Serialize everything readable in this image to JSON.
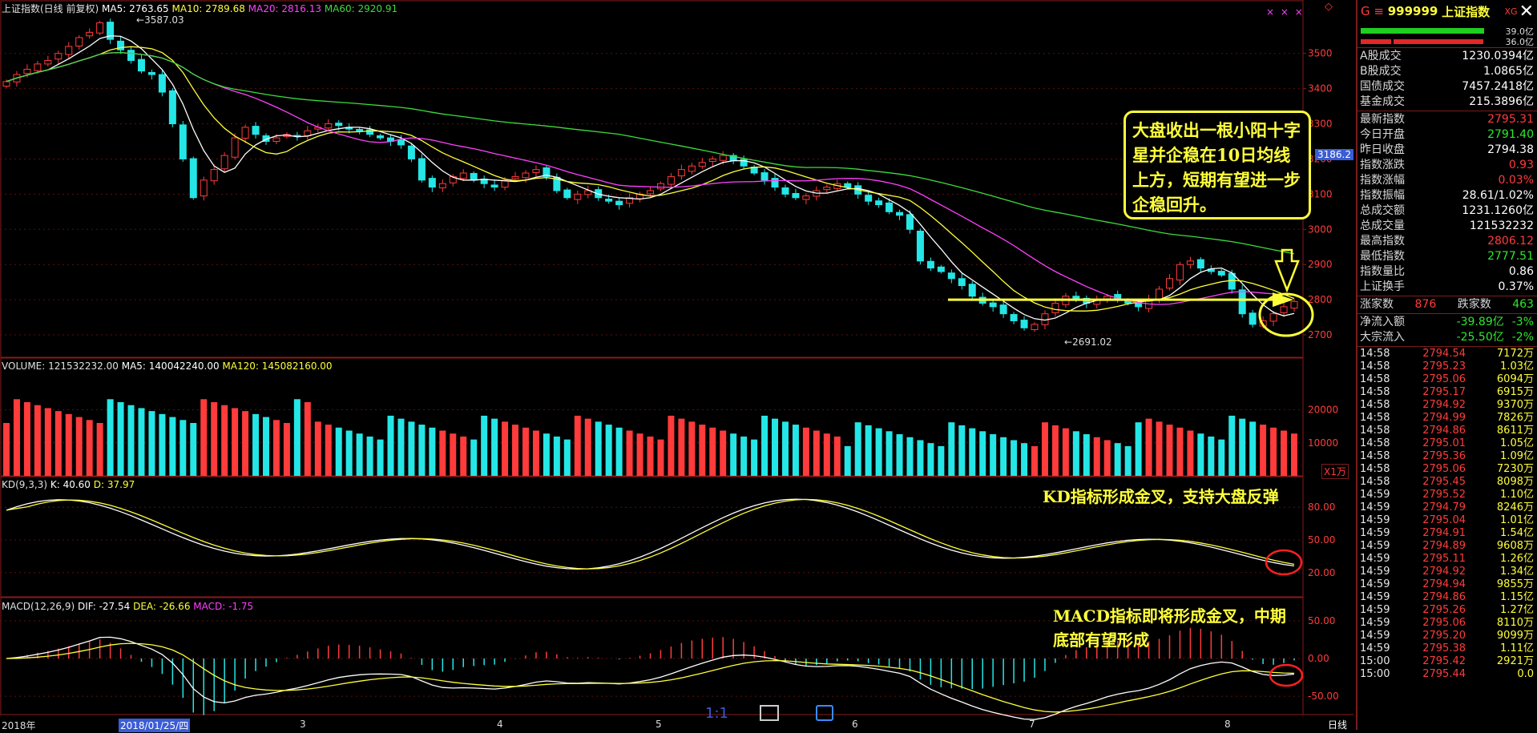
{
  "main_header": {
    "title": "上证指数(日线 前复权)",
    "ma5": "MA5: 2763.65",
    "ma10": "MA10: 2789.68",
    "ma20": "MA20: 2816.13",
    "ma60": "MA60: 2920.91",
    "peak_label": "3587.03",
    "low_label": "2691.02",
    "last_price_tag": "3186.2",
    "dots": "× × ×"
  },
  "price_axis": {
    "ticks": [
      "3500",
      "3400",
      "3300",
      "3200",
      "3100",
      "3000",
      "2900",
      "2800",
      "2700"
    ],
    "range": [
      2650,
      3620
    ]
  },
  "volume_header": {
    "label": "VOLUME: 121532232.00",
    "ma5": "MA5: 140042240.00",
    "ma120": "MA120: 145082160.00",
    "unit": "X1万",
    "ticks": [
      "20000",
      "10000"
    ]
  },
  "kd_header": {
    "label": "KD(9,3,3)",
    "k": "K: 40.60",
    "d": "D: 37.97",
    "ticks": [
      "80.00",
      "50.00",
      "20.00"
    ]
  },
  "macd_header": {
    "label": "MACD(12,26,9)",
    "dif": "DIF: -27.54",
    "dea": "DEA: -26.66",
    "macd": "MACD: -1.75",
    "ticks": [
      "50.00",
      "0.00",
      "-50.00"
    ]
  },
  "annotations": {
    "note_box": "大盘收出一根小阳十字星并企稳在10日均线上方，短期有望进一步企稳回升。",
    "kd_note": "KD指标形成金叉，支持大盘反弹",
    "macd_note_line1": "MACD指标即将形成金叉，中期",
    "macd_note_line2": "底部有望形成"
  },
  "time_axis": {
    "labels": [
      "2018年",
      "2018/01/25/四",
      "3",
      "4",
      "5",
      "6",
      "7",
      "8"
    ],
    "period": "日线",
    "toolbar": [
      "1:1",
      "zoom-icon",
      "settings-icon"
    ]
  },
  "right_panel": {
    "code_prefix": "G ≡",
    "code": "999999",
    "name": "上证指数",
    "tag": "XG",
    "close_icon": "close-icon",
    "bar1_value": "39.0亿",
    "bar2_value": "36.0亿",
    "stats_a": [
      {
        "label": "A股成交",
        "value": "1230.0394亿",
        "color": "white"
      },
      {
        "label": "B股成交",
        "value": "1.0865亿",
        "color": "white"
      },
      {
        "label": "国债成交",
        "value": "7457.2418亿",
        "color": "white"
      },
      {
        "label": "基金成交",
        "value": "215.3896亿",
        "color": "white"
      }
    ],
    "stats_b": [
      {
        "label": "最新指数",
        "value": "2795.31",
        "color": "red"
      },
      {
        "label": "今日开盘",
        "value": "2791.40",
        "color": "green"
      },
      {
        "label": "昨日收盘",
        "value": "2794.38",
        "color": "white"
      },
      {
        "label": "指数涨跌",
        "value": "0.93",
        "color": "red"
      },
      {
        "label": "指数涨幅",
        "value": "0.03%",
        "color": "red"
      },
      {
        "label": "指数振幅",
        "value": "28.61/1.02%",
        "color": "white"
      },
      {
        "label": "总成交额",
        "value": "1231.1260亿",
        "color": "white"
      },
      {
        "label": "总成交量",
        "value": "121532232",
        "color": "white"
      },
      {
        "label": "最高指数",
        "value": "2806.12",
        "color": "red"
      },
      {
        "label": "最低指数",
        "value": "2777.51",
        "color": "green"
      },
      {
        "label": "指数量比",
        "value": "0.86",
        "color": "white"
      },
      {
        "label": "上证换手",
        "value": "0.37%",
        "color": "white"
      }
    ],
    "updown": {
      "up_label": "涨家数",
      "up": "876",
      "down_label": "跌家数",
      "down": "463"
    },
    "flows": [
      {
        "label": "净流入额",
        "value": "-39.89亿",
        "pct": "-3%"
      },
      {
        "label": "大宗流入",
        "value": "-25.50亿",
        "pct": "-2%"
      }
    ],
    "ticks": [
      {
        "t": "14:58",
        "p": "2794.54",
        "v": "7172万"
      },
      {
        "t": "14:58",
        "p": "2795.23",
        "v": "1.03亿"
      },
      {
        "t": "14:58",
        "p": "2795.06",
        "v": "6094万"
      },
      {
        "t": "14:58",
        "p": "2795.17",
        "v": "6915万"
      },
      {
        "t": "14:58",
        "p": "2794.92",
        "v": "9370万"
      },
      {
        "t": "14:58",
        "p": "2794.99",
        "v": "7826万"
      },
      {
        "t": "14:58",
        "p": "2794.86",
        "v": "8611万"
      },
      {
        "t": "14:58",
        "p": "2795.01",
        "v": "1.05亿"
      },
      {
        "t": "14:58",
        "p": "2795.36",
        "v": "1.09亿"
      },
      {
        "t": "14:58",
        "p": "2795.06",
        "v": "7230万"
      },
      {
        "t": "14:58",
        "p": "2795.45",
        "v": "8098万"
      },
      {
        "t": "14:59",
        "p": "2795.52",
        "v": "1.10亿"
      },
      {
        "t": "14:59",
        "p": "2794.79",
        "v": "8246万"
      },
      {
        "t": "14:59",
        "p": "2795.04",
        "v": "1.01亿"
      },
      {
        "t": "14:59",
        "p": "2794.91",
        "v": "1.54亿"
      },
      {
        "t": "14:59",
        "p": "2794.89",
        "v": "9608万"
      },
      {
        "t": "14:59",
        "p": "2795.11",
        "v": "1.26亿"
      },
      {
        "t": "14:59",
        "p": "2794.92",
        "v": "1.34亿"
      },
      {
        "t": "14:59",
        "p": "2794.94",
        "v": "9855万"
      },
      {
        "t": "14:59",
        "p": "2794.86",
        "v": "1.15亿"
      },
      {
        "t": "14:59",
        "p": "2795.26",
        "v": "1.27亿"
      },
      {
        "t": "14:59",
        "p": "2795.06",
        "v": "8110万"
      },
      {
        "t": "14:59",
        "p": "2795.20",
        "v": "9099万"
      },
      {
        "t": "14:59",
        "p": "2795.38",
        "v": "1.11亿"
      },
      {
        "t": "15:00",
        "p": "2795.42",
        "v": "2921万"
      },
      {
        "t": "15:00",
        "p": "2795.44",
        "v": "0.0"
      }
    ]
  },
  "chart_data": {
    "type": "candlestick",
    "title": "上证指数(日线 前复权)",
    "price_range": [
      2650,
      3620
    ],
    "closes_approx": [
      3420,
      3440,
      3455,
      3470,
      3480,
      3500,
      3520,
      3545,
      3560,
      3587,
      3540,
      3510,
      3480,
      3450,
      3440,
      3390,
      3300,
      3200,
      3090,
      3140,
      3170,
      3210,
      3260,
      3290,
      3270,
      3250,
      3260,
      3270,
      3265,
      3280,
      3290,
      3300,
      3295,
      3285,
      3280,
      3270,
      3260,
      3250,
      3240,
      3200,
      3140,
      3120,
      3130,
      3150,
      3160,
      3140,
      3130,
      3120,
      3140,
      3150,
      3160,
      3170,
      3150,
      3110,
      3090,
      3100,
      3110,
      3090,
      3080,
      3070,
      3090,
      3100,
      3110,
      3130,
      3150,
      3170,
      3180,
      3190,
      3200,
      3210,
      3195,
      3180,
      3160,
      3140,
      3120,
      3100,
      3090,
      3095,
      3110,
      3120,
      3130,
      3120,
      3100,
      3080,
      3070,
      3050,
      3040,
      3000,
      2910,
      2890,
      2880,
      2860,
      2840,
      2810,
      2790,
      2780,
      2760,
      2740,
      2720,
      2730,
      2760,
      2790,
      2810,
      2800,
      2790,
      2800,
      2810,
      2800,
      2790,
      2780,
      2800,
      2830,
      2860,
      2900,
      2910,
      2890,
      2880,
      2870,
      2830,
      2760,
      2730,
      2740,
      2760,
      2780,
      2795
    ],
    "volume_ticks": [
      "20000",
      "10000"
    ],
    "kd": {
      "k": 40.6,
      "d": 37.97
    },
    "macd": {
      "dif": -27.54,
      "dea": -26.66,
      "macd": -1.75
    }
  }
}
